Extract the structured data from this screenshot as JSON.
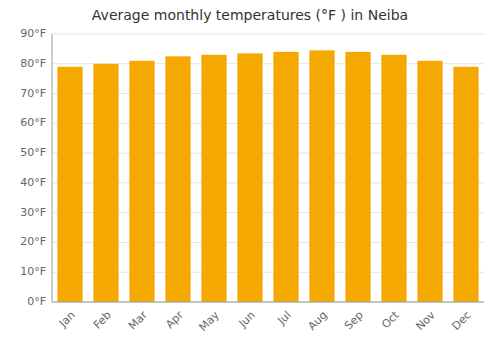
{
  "chart_data": {
    "type": "bar",
    "title": "Average monthly temperatures (°F ) in Neiba",
    "categories": [
      "Jan",
      "Feb",
      "Mar",
      "Apr",
      "May",
      "Jun",
      "Jul",
      "Aug",
      "Sep",
      "Oct",
      "Nov",
      "Dec"
    ],
    "values": [
      79,
      80,
      81,
      82.5,
      83,
      83.5,
      84,
      84.5,
      84,
      83,
      81,
      79
    ],
    "color": "#F5A800",
    "ylim": [
      0,
      90
    ],
    "yticks": [
      {
        "value": 0,
        "label": "0°F"
      },
      {
        "value": 10,
        "label": "10°F"
      },
      {
        "value": 20,
        "label": "20°F"
      },
      {
        "value": 30,
        "label": "30°F"
      },
      {
        "value": 40,
        "label": "40°F"
      },
      {
        "value": 50,
        "label": "50°F"
      },
      {
        "value": 60,
        "label": "60°F"
      },
      {
        "value": 70,
        "label": "70°F"
      },
      {
        "value": 80,
        "label": "80°F"
      },
      {
        "value": 90,
        "label": "90°F"
      }
    ],
    "grid": true
  }
}
